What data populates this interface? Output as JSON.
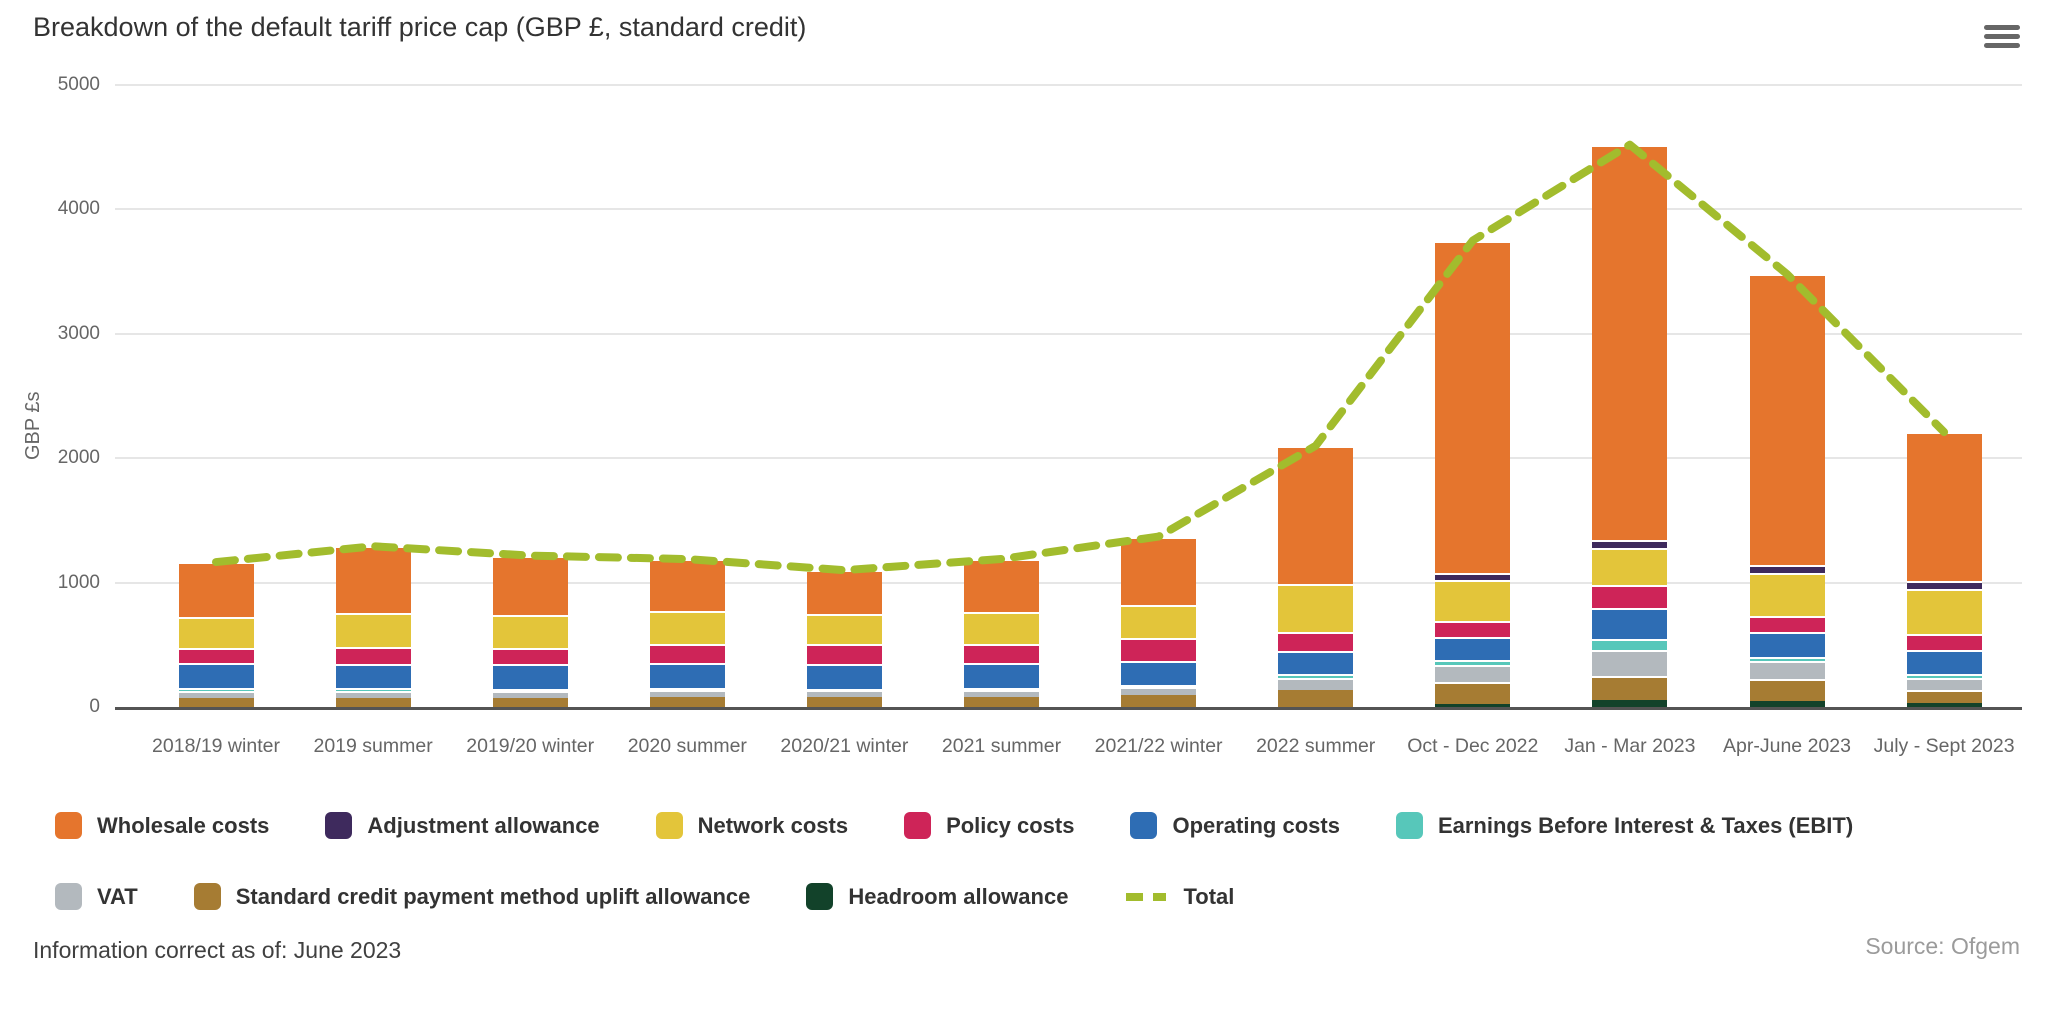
{
  "header": {
    "title": "Breakdown of the default tariff price cap (GBP £, standard credit)"
  },
  "chart_data": {
    "type": "bar",
    "stacked": true,
    "title": "Breakdown of the default tariff price cap (GBP £, standard credit)",
    "xlabel": "",
    "ylabel": "GBP £s",
    "ylim": [
      0,
      5000
    ],
    "yticks": [
      0,
      1000,
      2000,
      3000,
      4000,
      5000
    ],
    "grid": true,
    "legend_position": "bottom",
    "categories": [
      "2018/19 winter",
      "2019 summer",
      "2019/20 winter",
      "2020 summer",
      "2020/21 winter",
      "2021 summer",
      "2021/22 winter",
      "2022 summer",
      "Oct - Dec 2022",
      "Jan - Mar 2023",
      "Apr-June 2023",
      "July - Sept 2023"
    ],
    "stack_order_bottom_to_top": [
      "Headroom allowance",
      "Standard credit payment method uplift allowance",
      "VAT",
      "Earnings Before Interest & Taxes (EBIT)",
      "Operating costs",
      "Policy costs",
      "Network costs",
      "Adjustment allowance",
      "Wholesale costs"
    ],
    "series": [
      {
        "name": "Wholesale costs",
        "color": "#E5752D",
        "values": [
          445,
          540,
          475,
          420,
          352,
          430,
          552,
          1112,
          2670,
          3175,
          2340,
          1200
        ]
      },
      {
        "name": "Adjustment allowance",
        "color": "#3E2A5D",
        "values": [
          0,
          0,
          0,
          0,
          0,
          0,
          0,
          0,
          60,
          65,
          60,
          65
        ]
      },
      {
        "name": "Network costs",
        "color": "#E3C53A",
        "values": [
          245,
          270,
          265,
          260,
          240,
          250,
          265,
          385,
          330,
          300,
          350,
          360
        ]
      },
      {
        "name": "Policy costs",
        "color": "#CE2458",
        "values": [
          120,
          140,
          135,
          154,
          165,
          160,
          180,
          150,
          130,
          185,
          130,
          125
        ]
      },
      {
        "name": "Operating costs",
        "color": "#2E6DB4",
        "values": [
          205,
          190,
          195,
          200,
          195,
          200,
          200,
          190,
          185,
          250,
          195,
          195
        ]
      },
      {
        "name": "Earnings Before Interest & Taxes (EBIT)",
        "color": "#57C7BA",
        "values": [
          20,
          25,
          20,
          15,
          12,
          12,
          15,
          30,
          40,
          85,
          35,
          30
        ]
      },
      {
        "name": "VAT",
        "color": "#B3B9BE",
        "values": [
          55,
          55,
          55,
          60,
          58,
          58,
          60,
          95,
          130,
          210,
          145,
          100
        ]
      },
      {
        "name": "Standard credit payment method uplift allowance",
        "color": "#A67C33",
        "values": [
          75,
          72,
          72,
          80,
          78,
          80,
          98,
          138,
          180,
          190,
          175,
          105
        ]
      },
      {
        "name": "Headroom allowance",
        "color": "#12422A",
        "values": [
          0,
          0,
          0,
          0,
          0,
          0,
          0,
          0,
          25,
          60,
          50,
          30
        ]
      }
    ],
    "total_line": {
      "name": "Total",
      "color": "#A2BC2D",
      "style": "dashed",
      "values": [
        1165,
        1292,
        1217,
        1189,
        1100,
        1190,
        1370,
        2100,
        3750,
        4520,
        3480,
        2210
      ]
    }
  },
  "footer": {
    "info": "Information correct as of: June 2023",
    "source": "Source: Ofgem"
  }
}
